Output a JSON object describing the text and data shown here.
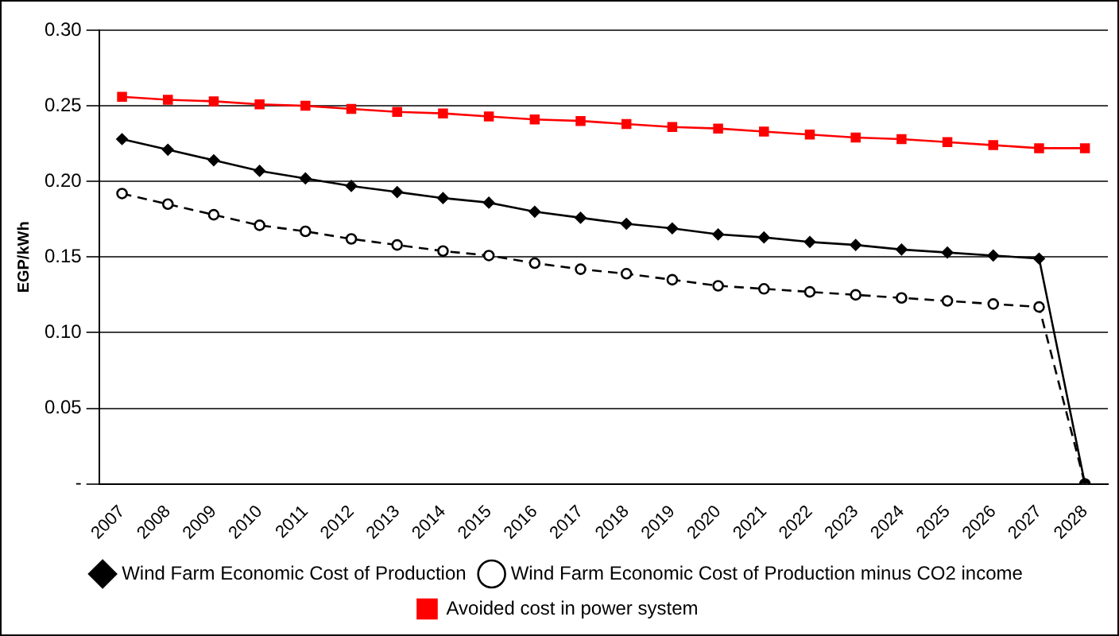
{
  "chart_data": {
    "type": "line",
    "ylabel": "EGP/kWh",
    "categories": [
      "2007",
      "2008",
      "2009",
      "2010",
      "2011",
      "2012",
      "2013",
      "2014",
      "2015",
      "2016",
      "2017",
      "2018",
      "2019",
      "2020",
      "2021",
      "2022",
      "2023",
      "2024",
      "2025",
      "2026",
      "2027",
      "2028"
    ],
    "series": [
      {
        "name": "Wind Farm Economic Cost of Production",
        "color": "#000000",
        "marker": "diamond",
        "line_style": "solid",
        "values": [
          0.228,
          0.221,
          0.214,
          0.207,
          0.202,
          0.197,
          0.193,
          0.189,
          0.186,
          0.18,
          0.176,
          0.172,
          0.169,
          0.165,
          0.163,
          0.16,
          0.158,
          0.155,
          0.153,
          0.151,
          0.149,
          0
        ]
      },
      {
        "name": "Wind Farm Economic Cost of Production minus CO2 income",
        "color": "#000000",
        "marker": "circle",
        "line_style": "dashed",
        "values": [
          0.192,
          0.185,
          0.178,
          0.171,
          0.167,
          0.162,
          0.158,
          0.154,
          0.151,
          0.146,
          0.142,
          0.139,
          0.135,
          0.131,
          0.129,
          0.127,
          0.125,
          0.123,
          0.121,
          0.119,
          0.117,
          0
        ]
      },
      {
        "name": "Avoided cost in power system",
        "color": "#ff0000",
        "marker": "square",
        "line_style": "solid",
        "values": [
          0.256,
          0.254,
          0.253,
          0.251,
          0.25,
          0.248,
          0.246,
          0.245,
          0.243,
          0.241,
          0.24,
          0.238,
          0.236,
          0.235,
          0.233,
          0.231,
          0.229,
          0.228,
          0.226,
          0.224,
          0.222,
          0.222
        ]
      }
    ],
    "ylim": [
      0,
      0.3
    ],
    "yticks": [
      {
        "value": 0,
        "label": "-"
      },
      {
        "value": 0.05,
        "label": "0.05"
      },
      {
        "value": 0.1,
        "label": "0.10"
      },
      {
        "value": 0.15,
        "label": "0.15"
      },
      {
        "value": 0.2,
        "label": "0.20"
      },
      {
        "value": 0.25,
        "label": "0.25"
      },
      {
        "value": 0.3,
        "label": "0.30"
      }
    ],
    "grid": "y",
    "legend": "bottom"
  }
}
